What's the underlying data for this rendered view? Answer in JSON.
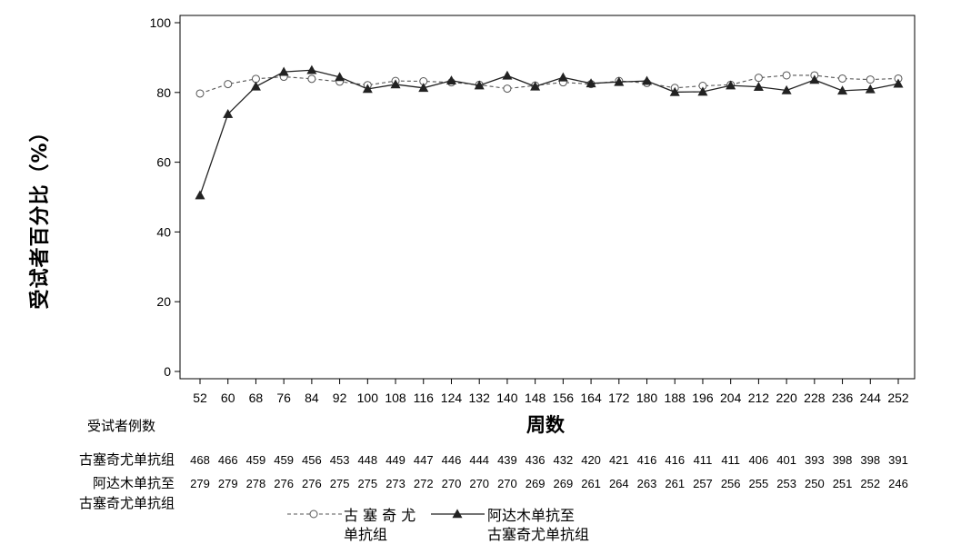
{
  "chart_data": {
    "type": "line",
    "title": "",
    "xlabel": "周数",
    "ylabel": "受试者百分比（%）",
    "ylim": [
      0,
      100
    ],
    "yticks": [
      0,
      20,
      40,
      60,
      80,
      100
    ],
    "x": [
      52,
      60,
      68,
      76,
      84,
      92,
      100,
      108,
      116,
      124,
      132,
      140,
      148,
      156,
      164,
      172,
      180,
      188,
      196,
      204,
      212,
      220,
      228,
      236,
      244,
      252
    ],
    "series": [
      {
        "name": "古塞奇尤单抗组",
        "style": "dashed-open-circle",
        "color": "#555555",
        "values": [
          79.7,
          82.4,
          83.9,
          84.5,
          83.9,
          83.1,
          82.1,
          83.3,
          83.2,
          82.9,
          82.2,
          81.1,
          82.0,
          82.9,
          82.4,
          83.3,
          82.7,
          81.3,
          81.9,
          82.2,
          84.2,
          84.9,
          84.9,
          84.0,
          83.7,
          84.0
        ]
      },
      {
        "name": "阿达木单抗至古塞奇尤单抗组",
        "style": "solid-filled-triangle",
        "color": "#222222",
        "values": [
          50.5,
          73.8,
          81.7,
          85.9,
          86.4,
          84.4,
          81.0,
          82.3,
          81.3,
          83.4,
          82.0,
          84.8,
          81.7,
          84.3,
          82.6,
          83.0,
          83.3,
          80.1,
          80.2,
          82.0,
          81.6,
          80.6,
          83.6,
          80.5,
          80.9,
          82.5
        ]
      }
    ],
    "grid": false
  },
  "counts": {
    "title": "受试者例数",
    "rows": [
      {
        "label_lines": [
          "古塞奇尤单抗组"
        ],
        "values": [
          "468",
          "466",
          "459",
          "459",
          "456",
          "453",
          "448",
          "449",
          "447",
          "446",
          "444",
          "439",
          "436",
          "432",
          "420",
          "421",
          "416",
          "416",
          "411",
          "411",
          "406",
          "401",
          "393",
          "398",
          "398",
          "391"
        ]
      },
      {
        "label_lines": [
          "阿达木单抗至",
          "古塞奇尤单抗组"
        ],
        "values": [
          "279",
          "279",
          "278",
          "276",
          "276",
          "275",
          "275",
          "273",
          "272",
          "270",
          "270",
          "270",
          "269",
          "269",
          "261",
          "264",
          "263",
          "261",
          "257",
          "256",
          "255",
          "253",
          "250",
          "251",
          "252",
          "246"
        ]
      }
    ]
  },
  "legend": [
    {
      "line1": "古 塞 奇 尤",
      "line2": "单抗组"
    },
    {
      "line1": "阿达木单抗至",
      "line2": "古塞奇尤单抗组"
    }
  ]
}
